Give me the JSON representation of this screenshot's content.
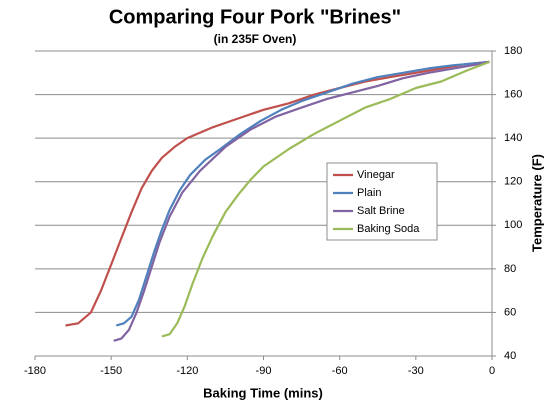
{
  "chart_data": {
    "type": "line",
    "title": "Comparing Four Pork \"Brines\"",
    "subtitle": "(in 235F Oven)",
    "x_label": "Baking Time (mins)",
    "y_label": "Temperature (F)",
    "xlim": [
      -180,
      0
    ],
    "xticks": [
      -180,
      -150,
      -120,
      -90,
      -60,
      -30,
      0
    ],
    "ylim": [
      40,
      180
    ],
    "yticks": [
      40,
      60,
      80,
      100,
      120,
      140,
      160,
      180
    ],
    "grid": true,
    "y_axis_side": "right",
    "legend": "right",
    "series": [
      {
        "name": "Vinegar",
        "color": "#c0504d",
        "x": [
          -168,
          -163,
          -158,
          -154,
          -150,
          -146,
          -142,
          -138,
          -134,
          -130,
          -125,
          -120,
          -110,
          -100,
          -90,
          -80,
          -70,
          -60,
          -50,
          -40,
          -30,
          -20,
          -10,
          -1
        ],
        "values": [
          54,
          55,
          60,
          70,
          82,
          94,
          106,
          117,
          125,
          131,
          136,
          140,
          145,
          149,
          153,
          156,
          160,
          163,
          166,
          168,
          170,
          172,
          174,
          175
        ]
      },
      {
        "name": "Plain",
        "color": "#4f81bd",
        "x": [
          -148,
          -145,
          -142,
          -139,
          -136,
          -133,
          -130,
          -127,
          -123,
          -119,
          -113,
          -107,
          -99,
          -91,
          -83,
          -75,
          -65,
          -55,
          -45,
          -35,
          -25,
          -15,
          -5,
          -1
        ],
        "values": [
          54,
          55,
          58,
          66,
          77,
          88,
          98,
          107,
          116,
          123,
          130,
          135,
          142,
          148,
          153,
          157,
          161,
          165,
          168,
          170,
          172,
          173.5,
          174.5,
          175
        ]
      },
      {
        "name": "Salt Brine",
        "color": "#8064a2",
        "x": [
          -149,
          -146,
          -143,
          -140,
          -137,
          -134,
          -131,
          -127,
          -122,
          -115,
          -105,
          -95,
          -85,
          -75,
          -65,
          -55,
          -45,
          -35,
          -25,
          -15,
          -5,
          -1
        ],
        "values": [
          47,
          48,
          52,
          60,
          70,
          81,
          92,
          104,
          115,
          125,
          136,
          144,
          150,
          154,
          158,
          161,
          164,
          167.5,
          170,
          172,
          174,
          175
        ]
      },
      {
        "name": "Baking Soda",
        "color": "#9bbb59",
        "x": [
          -130,
          -127,
          -124,
          -121,
          -118,
          -114,
          -110,
          -105,
          -100,
          -95,
          -90,
          -80,
          -70,
          -60,
          -50,
          -40,
          -30,
          -20,
          -10,
          -1
        ],
        "values": [
          49,
          50,
          55,
          63,
          73,
          85,
          95,
          106,
          114,
          121,
          127,
          135,
          142,
          148,
          154,
          158,
          163,
          166,
          171,
          175
        ]
      }
    ]
  }
}
